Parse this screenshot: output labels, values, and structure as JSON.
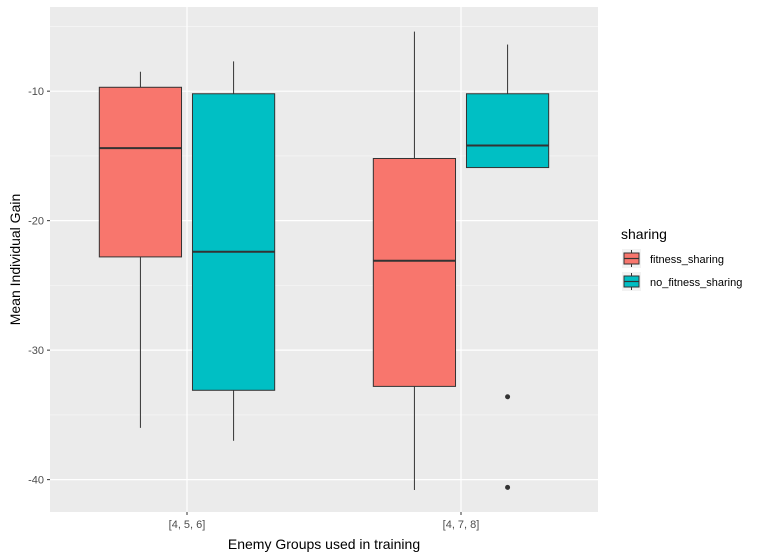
{
  "chart_data": {
    "type": "boxplot",
    "title": "",
    "xlabel": "Enemy Groups used in training",
    "ylabel": "Mean Individual Gain",
    "categories": [
      "[4, 5, 6]",
      "[4, 7, 8]"
    ],
    "ylim": [
      -42.5,
      -3.5
    ],
    "yticks": [
      -40,
      -30,
      -20,
      -10
    ],
    "ytick_labels": [
      "-40",
      "-30",
      "-20",
      "-10"
    ],
    "grid": true,
    "legend": {
      "title": "sharing",
      "placement": "right"
    },
    "series": [
      {
        "name": "fitness_sharing",
        "color": "#F8766D",
        "boxes": [
          {
            "category": "[4, 5, 6]",
            "whisker_low": -36.0,
            "q1": -22.8,
            "median": -14.4,
            "q3": -9.7,
            "whisker_high": -8.5,
            "outliers": []
          },
          {
            "category": "[4, 7, 8]",
            "whisker_low": -40.8,
            "q1": -32.8,
            "median": -23.1,
            "q3": -15.2,
            "whisker_high": -5.4,
            "outliers": []
          }
        ]
      },
      {
        "name": "no_fitness_sharing",
        "color": "#00BFC4",
        "boxes": [
          {
            "category": "[4, 5, 6]",
            "whisker_low": -37.0,
            "q1": -33.1,
            "median": -22.4,
            "q3": -10.2,
            "whisker_high": -7.7,
            "outliers": []
          },
          {
            "category": "[4, 7, 8]",
            "whisker_low": -15.9,
            "q1": -15.9,
            "median": -14.2,
            "q3": -10.2,
            "whisker_high": -6.4,
            "outliers": [
              -33.6,
              -40.6
            ]
          }
        ]
      }
    ]
  }
}
